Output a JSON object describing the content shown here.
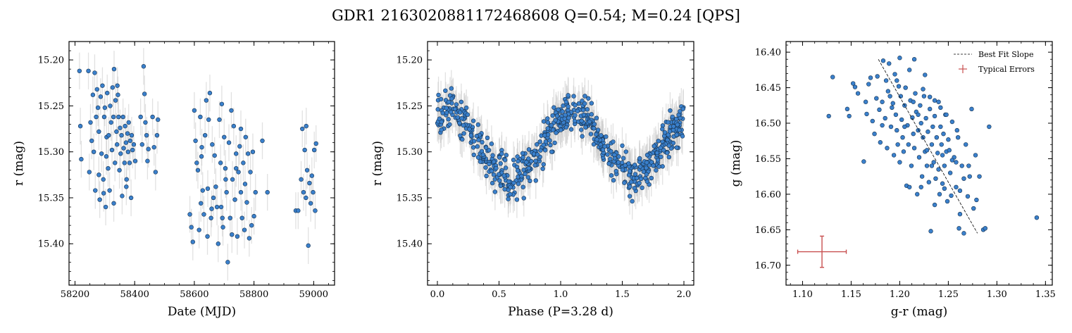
{
  "title": "GDR1 2163020881172468608  Q=0.54; M=0.24 [QPS]",
  "colors": {
    "point_fill": "#3a80cc",
    "point_edge": "#16324f",
    "errorbar": "#c8c8c8",
    "fit_line": "#000000",
    "typical_error": "#c85050"
  },
  "chart_data": [
    {
      "type": "scatter",
      "xlabel": "Date (MJD)",
      "ylabel": "r (mag)",
      "xlim": [
        58180,
        59070
      ],
      "ylim": [
        15.445,
        15.18
      ],
      "y_inverted": true,
      "xticks": [
        58200,
        58400,
        58600,
        58800,
        59000
      ],
      "xtick_labels": [
        "58200",
        "58400",
        "58600",
        "58800",
        "59000"
      ],
      "yticks": [
        15.2,
        15.25,
        15.3,
        15.35,
        15.4
      ],
      "ytick_labels": [
        "15.20",
        "15.25",
        "15.30",
        "15.35",
        "15.40"
      ],
      "error_bar_r": 0.02,
      "points": [
        [
          58215,
          15.212
        ],
        [
          58218,
          15.272
        ],
        [
          58221,
          15.308
        ],
        [
          58245,
          15.212
        ],
        [
          58248,
          15.322
        ],
        [
          58252,
          15.268
        ],
        [
          58256,
          15.288
        ],
        [
          58260,
          15.238
        ],
        [
          58263,
          15.3
        ],
        [
          58266,
          15.214
        ],
        [
          58268,
          15.342
        ],
        [
          58271,
          15.262
        ],
        [
          58274,
          15.232
        ],
        [
          58277,
          15.252
        ],
        [
          58280,
          15.278
        ],
        [
          58283,
          15.352
        ],
        [
          58286,
          15.24
        ],
        [
          58289,
          15.302
        ],
        [
          58292,
          15.228
        ],
        [
          58295,
          15.33
        ],
        [
          58298,
          15.262
        ],
        [
          58300,
          15.252
        ],
        [
          58303,
          15.36
        ],
        [
          58306,
          15.284
        ],
        [
          58308,
          15.236
        ],
        [
          58311,
          15.318
        ],
        [
          58313,
          15.282
        ],
        [
          58316,
          15.342
        ],
        [
          58318,
          15.25
        ],
        [
          58321,
          15.268
        ],
        [
          58324,
          15.298
        ],
        [
          58326,
          15.23
        ],
        [
          58329,
          15.262
        ],
        [
          58331,
          15.21
        ],
        [
          58334,
          15.312
        ],
        [
          58336,
          15.244
        ],
        [
          58339,
          15.278
        ],
        [
          58341,
          15.292
        ],
        [
          58344,
          15.238
        ],
        [
          58346,
          15.262
        ],
        [
          58349,
          15.32
        ],
        [
          58351,
          15.274
        ],
        [
          58353,
          15.302
        ],
        [
          58356,
          15.282
        ],
        [
          58358,
          15.348
        ],
        [
          58361,
          15.262
        ],
        [
          58363,
          15.296
        ],
        [
          58366,
          15.312
        ],
        [
          58368,
          15.272
        ],
        [
          58371,
          15.29
        ],
        [
          58373,
          15.33
        ],
        [
          58376,
          15.28
        ],
        [
          58378,
          15.3
        ],
        [
          58380,
          15.268
        ],
        [
          58383,
          15.312
        ],
        [
          58385,
          15.288
        ],
        [
          58388,
          15.35
        ],
        [
          58390,
          15.282
        ],
        [
          58393,
          15.298
        ],
        [
          58397,
          15.292
        ],
        [
          58402,
          15.31
        ],
        [
          58420,
          15.262
        ],
        [
          58425,
          15.292
        ],
        [
          58430,
          15.207
        ],
        [
          58433,
          15.237
        ],
        [
          58436,
          15.268
        ],
        [
          58440,
          15.282
        ],
        [
          58443,
          15.31
        ],
        [
          58446,
          15.297
        ],
        [
          58460,
          15.262
        ],
        [
          58465,
          15.295
        ],
        [
          58470,
          15.322
        ],
        [
          58475,
          15.282
        ],
        [
          58478,
          15.265
        ],
        [
          58280,
          15.325
        ],
        [
          58296,
          15.345
        ],
        [
          58330,
          15.356
        ],
        [
          58372,
          15.338
        ],
        [
          58342,
          15.228
        ],
        [
          58305,
          15.305
        ],
        [
          58585,
          15.368
        ],
        [
          58590,
          15.382
        ],
        [
          58595,
          15.398
        ],
        [
          58600,
          15.255
        ],
        [
          58604,
          15.288
        ],
        [
          58608,
          15.312
        ],
        [
          58612,
          15.32
        ],
        [
          58616,
          15.385
        ],
        [
          58620,
          15.262
        ],
        [
          58624,
          15.305
        ],
        [
          58628,
          15.342
        ],
        [
          58632,
          15.368
        ],
        [
          58636,
          15.282
        ],
        [
          58640,
          15.244
        ],
        [
          58644,
          15.392
        ],
        [
          58648,
          15.265
        ],
        [
          58652,
          15.236
        ],
        [
          58656,
          15.372
        ],
        [
          58660,
          15.292
        ],
        [
          58664,
          15.35
        ],
        [
          58668,
          15.304
        ],
        [
          58672,
          15.338
        ],
        [
          58676,
          15.36
        ],
        [
          58680,
          15.4
        ],
        [
          58684,
          15.265
        ],
        [
          58688,
          15.312
        ],
        [
          58692,
          15.248
        ],
        [
          58696,
          15.382
        ],
        [
          58700,
          15.284
        ],
        [
          58704,
          15.318
        ],
        [
          58708,
          15.344
        ],
        [
          58712,
          15.42
        ],
        [
          58716,
          15.29
        ],
        [
          58720,
          15.372
        ],
        [
          58724,
          15.255
        ],
        [
          58728,
          15.33
        ],
        [
          58732,
          15.272
        ],
        [
          58736,
          15.352
        ],
        [
          58740,
          15.302
        ],
        [
          58744,
          15.392
        ],
        [
          58748,
          15.322
        ],
        [
          58752,
          15.294
        ],
        [
          58756,
          15.344
        ],
        [
          58760,
          15.372
        ],
        [
          58764,
          15.312
        ],
        [
          58768,
          15.385
        ],
        [
          58772,
          15.284
        ],
        [
          58776,
          15.355
        ],
        [
          58780,
          15.302
        ],
        [
          58784,
          15.394
        ],
        [
          58788,
          15.322
        ],
        [
          58792,
          15.38
        ],
        [
          58796,
          15.3
        ],
        [
          58800,
          15.37
        ],
        [
          58805,
          15.344
        ],
        [
          58828,
          15.288
        ],
        [
          58845,
          15.344
        ],
        [
          58940,
          15.364
        ],
        [
          58948,
          15.364
        ],
        [
          58958,
          15.33
        ],
        [
          58962,
          15.275
        ],
        [
          58966,
          15.344
        ],
        [
          58970,
          15.298
        ],
        [
          58974,
          15.35
        ],
        [
          58978,
          15.32
        ],
        [
          58982,
          15.402
        ],
        [
          58986,
          15.334
        ],
        [
          58990,
          15.356
        ],
        [
          58994,
          15.326
        ],
        [
          58998,
          15.344
        ],
        [
          59002,
          15.298
        ],
        [
          59005,
          15.364
        ],
        [
          59008,
          15.291
        ],
        [
          58975,
          15.272
        ],
        [
          58622,
          15.356
        ],
        [
          58658,
          15.362
        ],
        [
          58694,
          15.372
        ],
        [
          58726,
          15.39
        ],
        [
          58756,
          15.275
        ],
        [
          58690,
          15.36
        ],
        [
          58705,
          15.33
        ],
        [
          58740,
          15.318
        ],
        [
          58770,
          15.335
        ],
        [
          58625,
          15.295
        ],
        [
          58645,
          15.34
        ]
      ]
    },
    {
      "type": "scatter",
      "xlabel": "Phase (P=3.28 d)",
      "ylabel": "r (mag)",
      "period_days": 3.28,
      "xlim": [
        -0.08,
        2.08
      ],
      "ylim": [
        15.445,
        15.18
      ],
      "y_inverted": true,
      "xticks": [
        0.0,
        0.5,
        1.0,
        1.5,
        2.0
      ],
      "xtick_labels": [
        "0.0",
        "0.5",
        "1.0",
        "1.5",
        "2.0"
      ],
      "yticks": [
        15.2,
        15.25,
        15.3,
        15.35,
        15.4
      ],
      "ytick_labels": [
        "15.20",
        "15.25",
        "15.30",
        "15.35",
        "15.40"
      ],
      "error_bar_r": 0.02,
      "curve_model": {
        "mean": 15.292,
        "amplitude": 0.036,
        "peak_phase": 0.1,
        "scatter": 0.022,
        "n_points": 640
      }
    },
    {
      "type": "scatter",
      "xlabel": "g-r (mag)",
      "ylabel": "g (mag)",
      "xlim": [
        1.083,
        1.357
      ],
      "ylim": [
        16.728,
        16.385
      ],
      "y_inverted": true,
      "xticks": [
        1.1,
        1.15,
        1.2,
        1.25,
        1.3,
        1.35
      ],
      "xtick_labels": [
        "1.10",
        "1.15",
        "1.20",
        "1.25",
        "1.30",
        "1.35"
      ],
      "yticks": [
        16.4,
        16.45,
        16.5,
        16.55,
        16.6,
        16.65,
        16.7
      ],
      "ytick_labels": [
        "16.40",
        "16.45",
        "16.50",
        "16.55",
        "16.60",
        "16.65",
        "16.70"
      ],
      "legend": {
        "position": "top-right",
        "entries": [
          "Best Fit Slope",
          "Typical Errors"
        ]
      },
      "best_fit": {
        "x": [
          1.178,
          1.28
        ],
        "y": [
          16.41,
          16.655
        ]
      },
      "typical_error": {
        "x": 1.12,
        "y": 16.681,
        "xerr": 0.025,
        "yerr": 0.022
      },
      "points": [
        [
          1.131,
          16.435
        ],
        [
          1.127,
          16.49
        ],
        [
          1.148,
          16.49
        ],
        [
          1.152,
          16.444
        ],
        [
          1.154,
          16.449
        ],
        [
          1.157,
          16.458
        ],
        [
          1.163,
          16.554
        ],
        [
          1.165,
          16.47
        ],
        [
          1.166,
          16.487
        ],
        [
          1.17,
          16.436
        ],
        [
          1.172,
          16.497
        ],
        [
          1.174,
          16.515
        ],
        [
          1.177,
          16.434
        ],
        [
          1.179,
          16.481
        ],
        [
          1.18,
          16.527
        ],
        [
          1.183,
          16.412
        ],
        [
          1.185,
          16.493
        ],
        [
          1.186,
          16.44
        ],
        [
          1.187,
          16.535
        ],
        [
          1.189,
          16.416
        ],
        [
          1.19,
          16.462
        ],
        [
          1.191,
          16.505
        ],
        [
          1.193,
          16.472
        ],
        [
          1.194,
          16.545
        ],
        [
          1.195,
          16.431
        ],
        [
          1.196,
          16.488
        ],
        [
          1.197,
          16.51
        ],
        [
          1.198,
          16.53
        ],
        [
          1.199,
          16.448
        ],
        [
          1.2,
          16.408
        ],
        [
          1.201,
          16.462
        ],
        [
          1.202,
          16.495
        ],
        [
          1.203,
          16.52
        ],
        [
          1.204,
          16.54
        ],
        [
          1.205,
          16.475
        ],
        [
          1.206,
          16.45
        ],
        [
          1.207,
          16.588
        ],
        [
          1.208,
          16.503
        ],
        [
          1.209,
          16.53
        ],
        [
          1.21,
          16.425
        ],
        [
          1.211,
          16.468
        ],
        [
          1.212,
          16.56
        ],
        [
          1.213,
          16.492
        ],
        [
          1.214,
          16.515
        ],
        [
          1.215,
          16.535
        ],
        [
          1.216,
          16.458
        ],
        [
          1.217,
          16.484
        ],
        [
          1.218,
          16.6
        ],
        [
          1.219,
          16.51
        ],
        [
          1.22,
          16.548
        ],
        [
          1.221,
          16.475
        ],
        [
          1.222,
          16.5
        ],
        [
          1.223,
          16.575
        ],
        [
          1.224,
          16.52
        ],
        [
          1.225,
          16.462
        ],
        [
          1.226,
          16.54
        ],
        [
          1.227,
          16.493
        ],
        [
          1.228,
          16.56
        ],
        [
          1.229,
          16.512
        ],
        [
          1.23,
          16.583
        ],
        [
          1.231,
          16.48
        ],
        [
          1.232,
          16.652
        ],
        [
          1.233,
          16.53
        ],
        [
          1.234,
          16.505
        ],
        [
          1.235,
          16.555
        ],
        [
          1.236,
          16.49
        ],
        [
          1.237,
          16.578
        ],
        [
          1.238,
          16.52
        ],
        [
          1.239,
          16.542
        ],
        [
          1.24,
          16.47
        ],
        [
          1.241,
          16.6
        ],
        [
          1.242,
          16.505
        ],
        [
          1.243,
          16.53
        ],
        [
          1.244,
          16.585
        ],
        [
          1.245,
          16.515
        ],
        [
          1.246,
          16.56
        ],
        [
          1.247,
          16.488
        ],
        [
          1.248,
          16.54
        ],
        [
          1.249,
          16.61
        ],
        [
          1.25,
          16.523
        ],
        [
          1.252,
          16.57
        ],
        [
          1.254,
          16.498
        ],
        [
          1.256,
          16.548
        ],
        [
          1.258,
          16.59
        ],
        [
          1.26,
          16.52
        ],
        [
          1.262,
          16.628
        ],
        [
          1.264,
          16.56
        ],
        [
          1.266,
          16.655
        ],
        [
          1.268,
          16.53
        ],
        [
          1.27,
          16.603
        ],
        [
          1.272,
          16.575
        ],
        [
          1.274,
          16.48
        ],
        [
          1.276,
          16.62
        ],
        [
          1.278,
          16.545
        ],
        [
          1.282,
          16.575
        ],
        [
          1.286,
          16.65
        ],
        [
          1.288,
          16.648
        ],
        [
          1.292,
          16.505
        ],
        [
          1.341,
          16.633
        ],
        [
          1.146,
          16.48
        ],
        [
          1.168,
          16.445
        ],
        [
          1.176,
          16.465
        ],
        [
          1.182,
          16.47
        ],
        [
          1.188,
          16.455
        ],
        [
          1.192,
          16.478
        ],
        [
          1.205,
          16.505
        ],
        [
          1.214,
          16.47
        ],
        [
          1.219,
          16.488
        ],
        [
          1.224,
          16.452
        ],
        [
          1.231,
          16.463
        ],
        [
          1.236,
          16.468
        ],
        [
          1.242,
          16.478
        ],
        [
          1.248,
          16.488
        ],
        [
          1.254,
          16.552
        ],
        [
          1.262,
          16.595
        ],
        [
          1.259,
          16.51
        ],
        [
          1.2,
          16.555
        ],
        [
          1.21,
          16.59
        ],
        [
          1.222,
          16.59
        ],
        [
          1.236,
          16.615
        ],
        [
          1.228,
          16.538
        ],
        [
          1.244,
          16.545
        ],
        [
          1.251,
          16.538
        ],
        [
          1.258,
          16.555
        ],
        [
          1.266,
          16.578
        ],
        [
          1.271,
          16.56
        ],
        [
          1.279,
          16.608
        ],
        [
          1.182,
          16.503
        ],
        [
          1.197,
          16.44
        ],
        [
          1.215,
          16.41
        ],
        [
          1.226,
          16.432
        ],
        [
          1.233,
          16.56
        ],
        [
          1.24,
          16.565
        ],
        [
          1.246,
          16.592
        ],
        [
          1.253,
          16.602
        ],
        [
          1.261,
          16.648
        ]
      ]
    }
  ]
}
